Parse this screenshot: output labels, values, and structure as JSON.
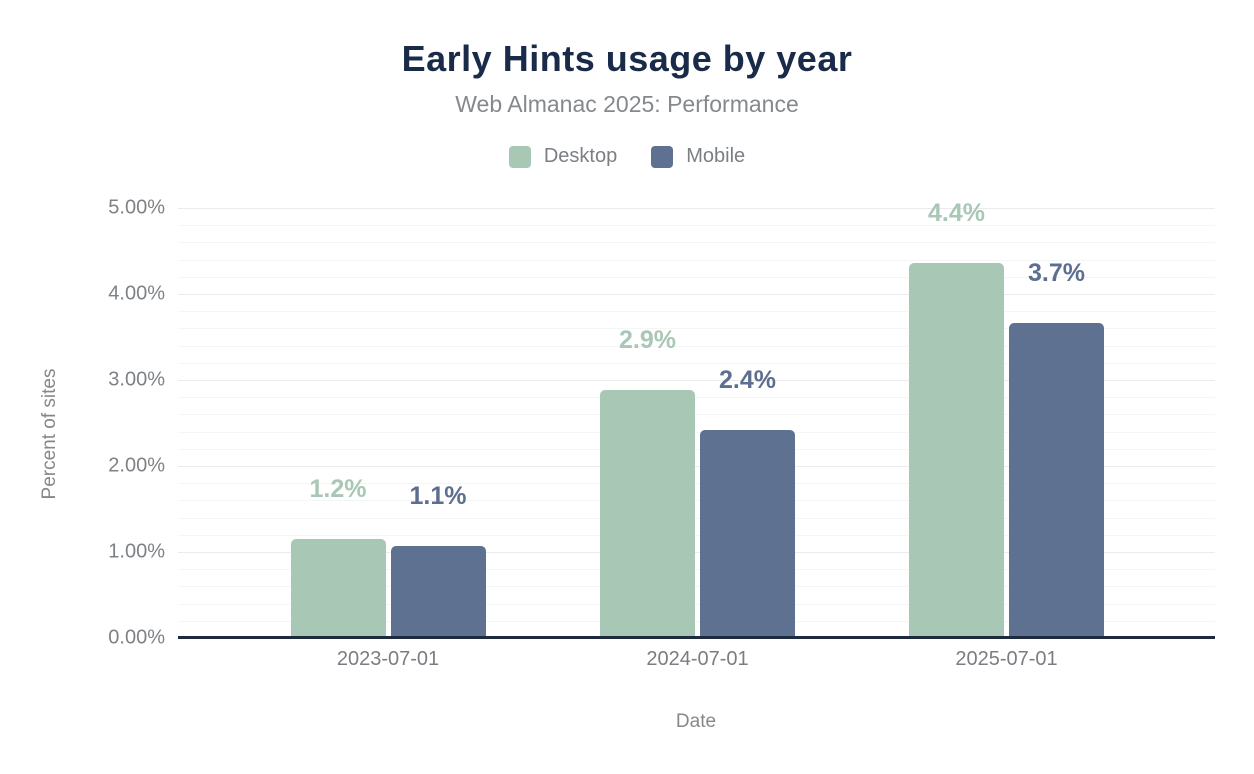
{
  "chart_data": {
    "type": "bar",
    "title": "Early Hints usage by year",
    "subtitle": "Web Almanac 2025: Performance",
    "xlabel": "Date",
    "ylabel": "Percent of sites",
    "categories": [
      "2023-07-01",
      "2024-07-01",
      "2025-07-01"
    ],
    "series": [
      {
        "name": "Desktop",
        "color": "#a8c7b5",
        "label_color": "#a8c7b5",
        "values": [
          1.15,
          2.88,
          4.36
        ],
        "display_labels": [
          "1.2%",
          "2.9%",
          "4.4%"
        ]
      },
      {
        "name": "Mobile",
        "color": "#5f7190",
        "label_color": "#5d6f90",
        "values": [
          1.07,
          2.42,
          3.66
        ],
        "display_labels": [
          "1.1%",
          "2.4%",
          "3.7%"
        ]
      }
    ],
    "ylim": [
      0,
      5
    ],
    "yticks": [
      0,
      1,
      2,
      3,
      4,
      5
    ],
    "ytick_labels": [
      "0.00%",
      "1.00%",
      "2.00%",
      "3.00%",
      "4.00%",
      "5.00%"
    ],
    "minor_grid_step": 0.2,
    "grid": "on",
    "legend_position": "top-center",
    "colors": {
      "title": "#1a2b49",
      "subtitle": "#85888d",
      "axis_line": "#1e2b3f",
      "major_gridline": "#e9ebed",
      "minor_gridline": "#f4f5f6"
    }
  }
}
